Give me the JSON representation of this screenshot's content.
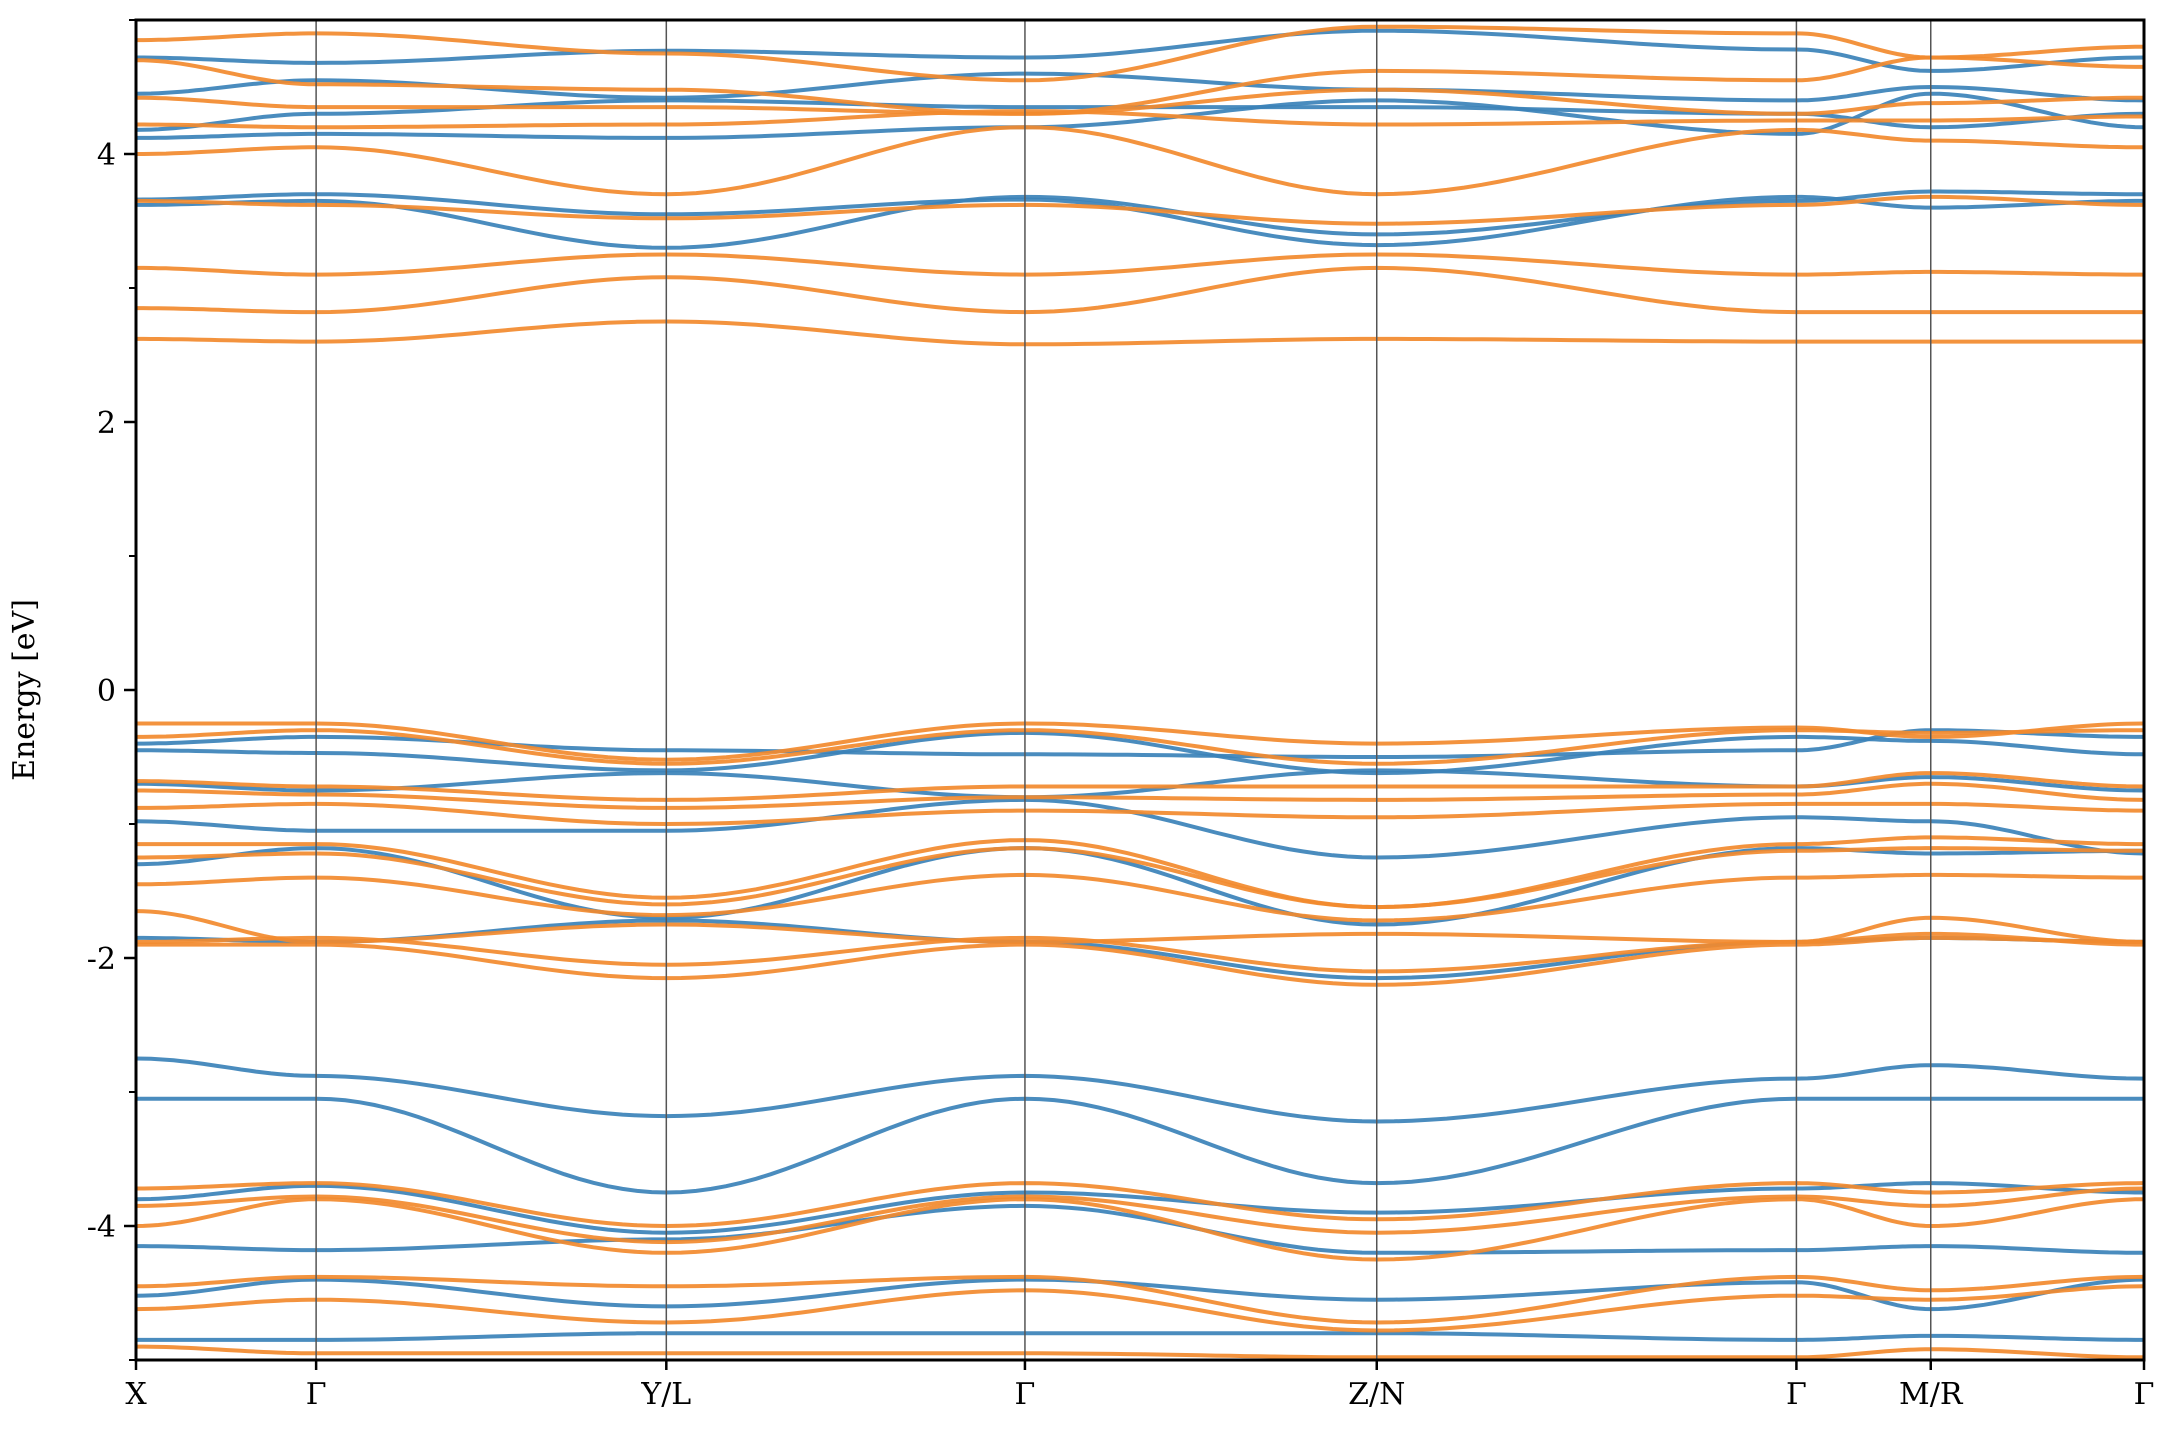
{
  "chart_data": {
    "type": "line",
    "title": "",
    "xlabel": "",
    "ylabel": "Energy [eV]",
    "ylim": [
      -5,
      5
    ],
    "yticks_major": [
      -4,
      -2,
      0,
      2,
      4
    ],
    "yticks_minor": [
      -5,
      -3,
      -1,
      1,
      3,
      5
    ],
    "ytick_labels": [
      "-4",
      "-2",
      "0",
      "2",
      "4"
    ],
    "x_range": [
      0,
      1
    ],
    "kpoints": [
      {
        "pos": 0.0,
        "label": "X"
      },
      {
        "pos": 0.0897,
        "label": "Γ"
      },
      {
        "pos": 0.2641,
        "label": "Y/L"
      },
      {
        "pos": 0.4427,
        "label": "Γ"
      },
      {
        "pos": 0.6179,
        "label": "Z/N"
      },
      {
        "pos": 0.8269,
        "label": "Γ"
      },
      {
        "pos": 0.8938,
        "label": "M/R"
      },
      {
        "pos": 1.0,
        "label": "Γ"
      }
    ],
    "grid": false,
    "legend": "none",
    "series_colors": [
      "#3b82b8",
      "#f28a2e"
    ],
    "series": [
      {
        "color": "#3b82b8",
        "bands": [
          [
            4.72,
            4.68,
            4.77,
            4.72,
            4.92,
            4.78,
            4.62,
            4.72
          ],
          [
            4.45,
            4.55,
            4.42,
            4.6,
            4.48,
            4.4,
            4.5,
            4.4
          ],
          [
            4.18,
            4.3,
            4.4,
            4.35,
            4.35,
            4.3,
            4.2,
            4.3
          ],
          [
            4.12,
            4.15,
            4.12,
            4.2,
            4.4,
            4.15,
            4.45,
            4.2
          ],
          [
            3.62,
            3.65,
            3.3,
            3.68,
            3.4,
            3.65,
            3.72,
            3.7
          ],
          [
            3.66,
            3.7,
            3.55,
            3.66,
            3.32,
            3.68,
            3.6,
            3.65
          ],
          [
            -0.4,
            -0.35,
            -0.45,
            -0.48,
            -0.5,
            -0.45,
            -0.3,
            -0.35
          ],
          [
            -0.45,
            -0.47,
            -0.6,
            -0.32,
            -0.62,
            -0.35,
            -0.38,
            -0.48
          ],
          [
            -0.7,
            -0.75,
            -0.62,
            -0.8,
            -0.6,
            -0.72,
            -0.65,
            -0.75
          ],
          [
            -0.98,
            -1.05,
            -1.05,
            -0.82,
            -1.25,
            -0.95,
            -0.98,
            -1.22
          ],
          [
            -1.3,
            -1.18,
            -1.7,
            -1.18,
            -1.75,
            -1.18,
            -1.22,
            -1.2
          ],
          [
            -1.85,
            -1.88,
            -1.72,
            -1.88,
            -2.15,
            -1.88,
            -1.85,
            -1.88
          ],
          [
            -2.75,
            -2.88,
            -3.18,
            -2.88,
            -3.22,
            -2.9,
            -2.8,
            -2.9
          ],
          [
            -3.05,
            -3.05,
            -3.75,
            -3.05,
            -3.68,
            -3.05,
            -3.05,
            -3.05
          ],
          [
            -3.8,
            -3.7,
            -4.05,
            -3.75,
            -3.9,
            -3.72,
            -3.68,
            -3.75
          ],
          [
            -4.15,
            -4.18,
            -4.1,
            -3.85,
            -4.2,
            -4.18,
            -4.15,
            -4.2
          ],
          [
            -4.52,
            -4.4,
            -4.6,
            -4.4,
            -4.55,
            -4.42,
            -4.62,
            -4.4
          ],
          [
            -4.85,
            -4.85,
            -4.8,
            -4.8,
            -4.8,
            -4.85,
            -4.82,
            -4.85
          ]
        ]
      },
      {
        "color": "#f28a2e",
        "bands": [
          [
            4.85,
            4.9,
            4.75,
            4.55,
            4.95,
            4.9,
            4.72,
            4.8
          ],
          [
            4.7,
            4.52,
            4.48,
            4.3,
            4.62,
            4.55,
            4.72,
            4.65
          ],
          [
            4.42,
            4.35,
            4.35,
            4.3,
            4.48,
            4.3,
            4.38,
            4.42
          ],
          [
            4.22,
            4.2,
            4.22,
            4.32,
            4.22,
            4.25,
            4.25,
            4.28
          ],
          [
            4.0,
            4.05,
            3.7,
            4.2,
            3.7,
            4.18,
            4.1,
            4.05
          ],
          [
            3.65,
            3.62,
            3.52,
            3.62,
            3.48,
            3.62,
            3.68,
            3.62
          ],
          [
            3.15,
            3.1,
            3.25,
            3.1,
            3.25,
            3.1,
            3.12,
            3.1
          ],
          [
            2.85,
            2.82,
            3.08,
            2.82,
            3.15,
            2.82,
            2.82,
            2.82
          ],
          [
            2.62,
            2.6,
            2.75,
            2.58,
            2.62,
            2.6,
            2.6,
            2.6
          ],
          [
            -0.25,
            -0.25,
            -0.52,
            -0.25,
            -0.4,
            -0.28,
            -0.35,
            -0.25
          ],
          [
            -0.35,
            -0.3,
            -0.55,
            -0.3,
            -0.55,
            -0.3,
            -0.32,
            -0.3
          ],
          [
            -0.68,
            -0.72,
            -0.82,
            -0.72,
            -0.72,
            -0.72,
            -0.62,
            -0.72
          ],
          [
            -0.75,
            -0.78,
            -0.88,
            -0.8,
            -0.82,
            -0.78,
            -0.7,
            -0.82
          ],
          [
            -0.88,
            -0.85,
            -1.0,
            -0.9,
            -0.95,
            -0.85,
            -0.85,
            -0.9
          ],
          [
            -1.15,
            -1.15,
            -1.55,
            -1.12,
            -1.62,
            -1.15,
            -1.1,
            -1.15
          ],
          [
            -1.25,
            -1.22,
            -1.6,
            -1.18,
            -1.62,
            -1.2,
            -1.18,
            -1.2
          ],
          [
            -1.45,
            -1.4,
            -1.68,
            -1.38,
            -1.72,
            -1.4,
            -1.38,
            -1.4
          ],
          [
            -1.65,
            -1.88,
            -1.75,
            -1.88,
            -1.82,
            -1.88,
            -1.7,
            -1.88
          ],
          [
            -1.88,
            -1.85,
            -2.05,
            -1.85,
            -2.1,
            -1.88,
            -1.82,
            -1.9
          ],
          [
            -1.9,
            -1.9,
            -2.15,
            -1.9,
            -2.2,
            -1.9,
            -1.85,
            -1.88
          ],
          [
            -3.72,
            -3.68,
            -4.0,
            -3.68,
            -3.95,
            -3.68,
            -3.75,
            -3.68
          ],
          [
            -3.85,
            -3.78,
            -4.12,
            -3.78,
            -4.05,
            -3.78,
            -3.85,
            -3.72
          ],
          [
            -4.0,
            -3.8,
            -4.2,
            -3.8,
            -4.25,
            -3.8,
            -4.0,
            -3.8
          ],
          [
            -4.45,
            -4.38,
            -4.45,
            -4.38,
            -4.72,
            -4.38,
            -4.48,
            -4.38
          ],
          [
            -4.62,
            -4.55,
            -4.72,
            -4.48,
            -4.78,
            -4.52,
            -4.55,
            -4.45
          ],
          [
            -4.9,
            -4.95,
            -4.95,
            -4.95,
            -4.98,
            -4.98,
            -4.92,
            -4.98
          ]
        ]
      }
    ]
  }
}
